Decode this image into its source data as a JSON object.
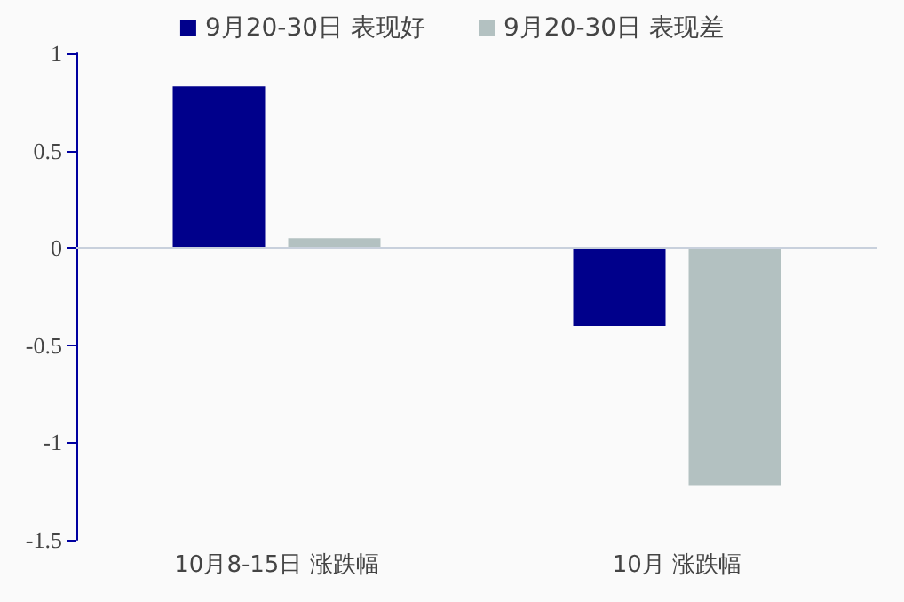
{
  "chart_data": {
    "type": "bar",
    "categories": [
      "10月8-15日 涨跌幅",
      "10月 涨跌幅"
    ],
    "series": [
      {
        "name": "9月20-30日 表现好",
        "color": "#00008b",
        "values": [
          0.83,
          -0.4
        ]
      },
      {
        "name": "9月20-30日 表现差",
        "color": "#b3c1c1",
        "values": [
          0.05,
          -1.22
        ]
      }
    ],
    "ylim": [
      -1.5,
      1
    ],
    "yticks": [
      -1.5,
      -1,
      -0.5,
      0,
      0.5,
      1
    ],
    "legend": "top",
    "ref_lines": [
      {
        "axis": "y",
        "value": 0,
        "color": "#c8d0dc"
      }
    ]
  }
}
